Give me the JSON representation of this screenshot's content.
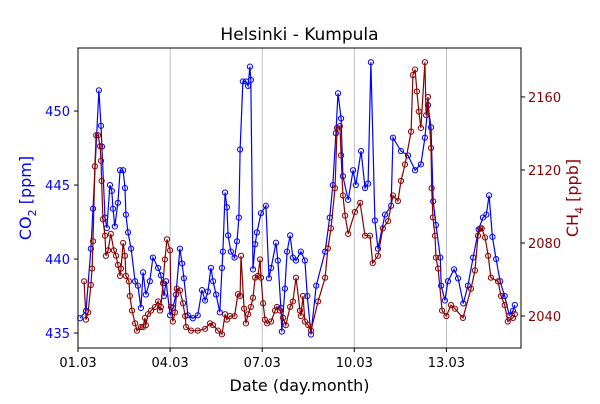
{
  "chart_data": {
    "type": "line",
    "title": "Helsinki - Kumpula",
    "xlabel": "Date (day.month)",
    "ylabel_left": {
      "main": "CO",
      "sub": "2",
      "unit": " [ppm]"
    },
    "ylabel_right": {
      "main": "CH",
      "sub": "4",
      "unit": " [ppb]"
    },
    "x_unit": "days since 01.03",
    "xlim": [
      0,
      14.43
    ],
    "ylim_left": [
      433.99,
      454.26
    ],
    "ylim_right": [
      2022.5,
      2186.8
    ],
    "x_ticks": [
      {
        "v": 0,
        "label": "01.03"
      },
      {
        "v": 3,
        "label": "04.03"
      },
      {
        "v": 6,
        "label": "07.03"
      },
      {
        "v": 9,
        "label": "10.03"
      },
      {
        "v": 12,
        "label": "13.03"
      }
    ],
    "y_ticks_left": [
      435,
      440,
      445,
      450
    ],
    "y_ticks_right": [
      2040,
      2080,
      2120,
      2160
    ],
    "grid": "vertical lines at x ticks",
    "colors": {
      "co2": "#0000ff",
      "ch4": "#8b0000",
      "grid": "#b0b0b0"
    },
    "series": [
      {
        "name": "CO2",
        "axis": "left",
        "points": [
          [
            0.07,
            436.0
          ],
          [
            0.26,
            436.5
          ],
          [
            0.42,
            440.7
          ],
          [
            0.49,
            443.4
          ],
          [
            0.68,
            451.4
          ],
          [
            0.75,
            449.0
          ],
          [
            0.78,
            447.6
          ],
          [
            0.88,
            442.8
          ],
          [
            0.94,
            442.1
          ],
          [
            1.04,
            445.0
          ],
          [
            1.1,
            444.6
          ],
          [
            1.14,
            443.4
          ],
          [
            1.2,
            442.2
          ],
          [
            1.3,
            443.8
          ],
          [
            1.37,
            446.0
          ],
          [
            1.47,
            446.0
          ],
          [
            1.53,
            444.8
          ],
          [
            1.56,
            443.0
          ],
          [
            1.63,
            441.8
          ],
          [
            1.73,
            440.7
          ],
          [
            1.86,
            438.5
          ],
          [
            1.95,
            438.2
          ],
          [
            2.05,
            436.7
          ],
          [
            2.12,
            439.1
          ],
          [
            2.21,
            437.6
          ],
          [
            2.34,
            438.5
          ],
          [
            2.44,
            440.1
          ],
          [
            2.61,
            439.4
          ],
          [
            2.7,
            438.9
          ],
          [
            2.8,
            437.5
          ],
          [
            2.87,
            438.5
          ],
          [
            3.0,
            436.2
          ],
          [
            3.09,
            436.7
          ],
          [
            3.19,
            437.6
          ],
          [
            3.32,
            440.7
          ],
          [
            3.39,
            439.7
          ],
          [
            3.45,
            438.7
          ],
          [
            3.58,
            436.2
          ],
          [
            3.74,
            436.0
          ],
          [
            3.9,
            436.2
          ],
          [
            4.04,
            437.9
          ],
          [
            4.14,
            437.2
          ],
          [
            4.23,
            437.8
          ],
          [
            4.33,
            439.4
          ],
          [
            4.4,
            438.5
          ],
          [
            4.5,
            437.6
          ],
          [
            4.62,
            436.4
          ],
          [
            4.69,
            439.4
          ],
          [
            4.72,
            440.5
          ],
          [
            4.79,
            444.5
          ],
          [
            4.85,
            443.5
          ],
          [
            4.89,
            441.6
          ],
          [
            4.98,
            440.5
          ],
          [
            5.1,
            440.1
          ],
          [
            5.18,
            441.2
          ],
          [
            5.24,
            442.8
          ],
          [
            5.28,
            447.4
          ],
          [
            5.37,
            452.0
          ],
          [
            5.47,
            452.0
          ],
          [
            5.54,
            451.7
          ],
          [
            5.6,
            453.0
          ],
          [
            5.63,
            452.1
          ],
          [
            5.7,
            439.3
          ],
          [
            5.77,
            441.0
          ],
          [
            5.83,
            441.8
          ],
          [
            5.96,
            443.1
          ],
          [
            6.12,
            443.6
          ],
          [
            6.22,
            438.7
          ],
          [
            6.29,
            439.4
          ],
          [
            6.45,
            441.1
          ],
          [
            6.51,
            439.9
          ],
          [
            6.61,
            436.7
          ],
          [
            6.64,
            435.1
          ],
          [
            6.74,
            438.0
          ],
          [
            6.81,
            440.5
          ],
          [
            6.91,
            441.6
          ],
          [
            7.0,
            440.1
          ],
          [
            7.1,
            439.9
          ],
          [
            7.26,
            440.5
          ],
          [
            7.39,
            439.9
          ],
          [
            7.47,
            437.5
          ],
          [
            7.59,
            434.9
          ],
          [
            7.76,
            438.2
          ],
          [
            8.05,
            440.5
          ],
          [
            8.2,
            442.8
          ],
          [
            8.3,
            445.0
          ],
          [
            8.4,
            448.5
          ],
          [
            8.47,
            451.2
          ],
          [
            8.57,
            449.5
          ],
          [
            8.63,
            445.6
          ],
          [
            8.8,
            444.0
          ],
          [
            8.96,
            446.0
          ],
          [
            9.05,
            445.0
          ],
          [
            9.22,
            447.3
          ],
          [
            9.35,
            444.8
          ],
          [
            9.45,
            445.1
          ],
          [
            9.54,
            453.3
          ],
          [
            9.67,
            442.6
          ],
          [
            9.77,
            440.7
          ],
          [
            10.0,
            443.0
          ],
          [
            10.2,
            443.6
          ],
          [
            10.26,
            448.2
          ],
          [
            10.52,
            447.3
          ],
          [
            10.75,
            447.0
          ],
          [
            10.98,
            446.0
          ],
          [
            11.17,
            446.4
          ],
          [
            11.3,
            448.2
          ],
          [
            11.4,
            450.4
          ],
          [
            11.5,
            448.9
          ],
          [
            11.57,
            443.9
          ],
          [
            11.66,
            442.3
          ],
          [
            11.8,
            440.1
          ],
          [
            11.83,
            438.2
          ],
          [
            11.95,
            437.2
          ],
          [
            12.05,
            438.5
          ],
          [
            12.25,
            439.3
          ],
          [
            12.38,
            438.7
          ],
          [
            12.55,
            437.0
          ],
          [
            12.7,
            438.2
          ],
          [
            12.87,
            440.1
          ],
          [
            13.05,
            442.0
          ],
          [
            13.19,
            442.8
          ],
          [
            13.3,
            443.0
          ],
          [
            13.39,
            444.3
          ],
          [
            13.5,
            441.5
          ],
          [
            13.62,
            440.0
          ],
          [
            13.75,
            438.5
          ],
          [
            13.9,
            437.5
          ],
          [
            14.05,
            436.2
          ],
          [
            14.17,
            436.5
          ],
          [
            14.23,
            436.9
          ]
        ]
      },
      {
        "name": "CH4",
        "axis": "right",
        "points": [
          [
            0.2,
            2059
          ],
          [
            0.26,
            2038
          ],
          [
            0.33,
            2042
          ],
          [
            0.42,
            2057
          ],
          [
            0.46,
            2066
          ],
          [
            0.49,
            2081
          ],
          [
            0.55,
            2122
          ],
          [
            0.59,
            2139
          ],
          [
            0.65,
            2139
          ],
          [
            0.72,
            2133
          ],
          [
            0.75,
            2125
          ],
          [
            0.77,
            2114
          ],
          [
            0.81,
            2093
          ],
          [
            0.88,
            2084
          ],
          [
            0.91,
            2073
          ],
          [
            0.98,
            2076
          ],
          [
            1.07,
            2085
          ],
          [
            1.17,
            2076
          ],
          [
            1.24,
            2073
          ],
          [
            1.3,
            2068
          ],
          [
            1.37,
            2062
          ],
          [
            1.4,
            2066
          ],
          [
            1.47,
            2080
          ],
          [
            1.53,
            2073
          ],
          [
            1.56,
            2062
          ],
          [
            1.66,
            2059
          ],
          [
            1.69,
            2051
          ],
          [
            1.76,
            2043
          ],
          [
            1.86,
            2036
          ],
          [
            1.92,
            2032
          ],
          [
            2.05,
            2034
          ],
          [
            2.12,
            2034
          ],
          [
            2.18,
            2039
          ],
          [
            2.21,
            2035
          ],
          [
            2.28,
            2041
          ],
          [
            2.38,
            2043
          ],
          [
            2.51,
            2045
          ],
          [
            2.61,
            2048
          ],
          [
            2.67,
            2043
          ],
          [
            2.7,
            2045
          ],
          [
            2.77,
            2058
          ],
          [
            2.83,
            2071
          ],
          [
            2.9,
            2082
          ],
          [
            3.0,
            2076
          ],
          [
            3.03,
            2045
          ],
          [
            3.09,
            2037
          ],
          [
            3.16,
            2042
          ],
          [
            3.22,
            2055
          ],
          [
            3.32,
            2054
          ],
          [
            3.42,
            2047
          ],
          [
            3.49,
            2040
          ],
          [
            3.52,
            2034
          ],
          [
            3.68,
            2032
          ],
          [
            3.9,
            2032
          ],
          [
            4.14,
            2033
          ],
          [
            4.3,
            2036
          ],
          [
            4.4,
            2035
          ],
          [
            4.56,
            2032
          ],
          [
            4.69,
            2030
          ],
          [
            4.79,
            2041
          ],
          [
            4.85,
            2038
          ],
          [
            4.95,
            2040
          ],
          [
            5.1,
            2040
          ],
          [
            5.21,
            2052
          ],
          [
            5.28,
            2051
          ],
          [
            5.31,
            2073
          ],
          [
            5.41,
            2044
          ],
          [
            5.47,
            2036
          ],
          [
            5.54,
            2041
          ],
          [
            5.63,
            2045
          ],
          [
            5.7,
            2050
          ],
          [
            5.77,
            2061
          ],
          [
            5.86,
            2062
          ],
          [
            5.93,
            2071
          ],
          [
            5.96,
            2061
          ],
          [
            6.03,
            2047
          ],
          [
            6.09,
            2038
          ],
          [
            6.16,
            2036
          ],
          [
            6.29,
            2037
          ],
          [
            6.42,
            2043
          ],
          [
            6.48,
            2045
          ],
          [
            6.58,
            2043
          ],
          [
            6.68,
            2039
          ],
          [
            6.77,
            2035
          ],
          [
            6.91,
            2045
          ],
          [
            7.0,
            2048
          ],
          [
            7.1,
            2061
          ],
          [
            7.23,
            2043
          ],
          [
            7.26,
            2040
          ],
          [
            7.33,
            2051
          ],
          [
            7.39,
            2037
          ],
          [
            7.5,
            2035
          ],
          [
            7.59,
            2032
          ],
          [
            7.82,
            2048
          ],
          [
            8.05,
            2061
          ],
          [
            8.14,
            2077
          ],
          [
            8.24,
            2088
          ],
          [
            8.37,
            2110
          ],
          [
            8.44,
            2143
          ],
          [
            8.53,
            2144
          ],
          [
            8.57,
            2128
          ],
          [
            8.63,
            2106
          ],
          [
            8.7,
            2095
          ],
          [
            8.8,
            2085
          ],
          [
            9.02,
            2097
          ],
          [
            9.19,
            2102
          ],
          [
            9.35,
            2084
          ],
          [
            9.51,
            2084
          ],
          [
            9.6,
            2069
          ],
          [
            9.77,
            2073
          ],
          [
            9.93,
            2088
          ],
          [
            10.1,
            2092
          ],
          [
            10.26,
            2106
          ],
          [
            10.42,
            2103
          ],
          [
            10.52,
            2114
          ],
          [
            10.65,
            2123
          ],
          [
            10.85,
            2141
          ],
          [
            10.91,
            2172
          ],
          [
            10.98,
            2175
          ],
          [
            11.04,
            2163
          ],
          [
            11.1,
            2152
          ],
          [
            11.17,
            2143
          ],
          [
            11.3,
            2179
          ],
          [
            11.34,
            2150
          ],
          [
            11.4,
            2160
          ],
          [
            11.5,
            2132
          ],
          [
            11.52,
            2110
          ],
          [
            11.56,
            2094
          ],
          [
            11.63,
            2084
          ],
          [
            11.66,
            2072
          ],
          [
            11.73,
            2066
          ],
          [
            11.86,
            2043
          ],
          [
            12.0,
            2040
          ],
          [
            12.15,
            2046
          ],
          [
            12.28,
            2044
          ],
          [
            12.54,
            2039
          ],
          [
            12.8,
            2055
          ],
          [
            12.93,
            2065
          ],
          [
            13.03,
            2084
          ],
          [
            13.1,
            2088
          ],
          [
            13.15,
            2088
          ],
          [
            13.26,
            2083
          ],
          [
            13.36,
            2073
          ],
          [
            13.45,
            2061
          ],
          [
            13.68,
            2059
          ],
          [
            13.78,
            2051
          ],
          [
            13.9,
            2046
          ],
          [
            14.0,
            2037
          ],
          [
            14.17,
            2039
          ],
          [
            14.23,
            2041
          ]
        ]
      }
    ]
  }
}
